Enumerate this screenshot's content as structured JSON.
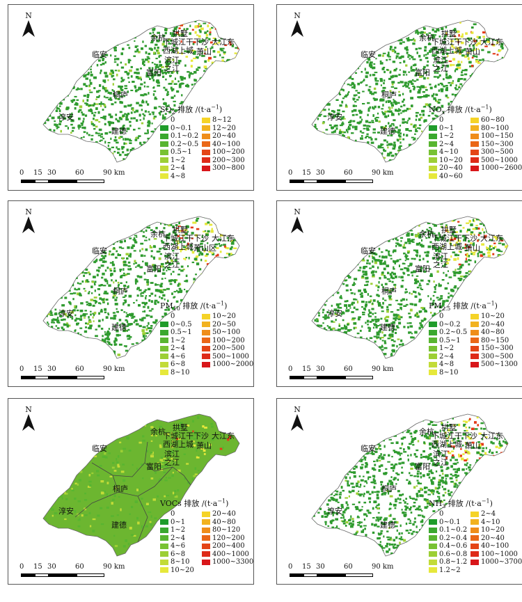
{
  "panels": [
    {
      "id": "so2",
      "title_main": "SO",
      "title_sub": "2",
      "title_rest": " 排放 /(t·a",
      "title_sup": "−1",
      "title_end": ")",
      "left": [
        {
          "label": "0",
          "color": ""
        },
        {
          "label": "0~0.1",
          "color": "#1f9c2a"
        },
        {
          "label": "0.1~0.2",
          "color": "#3aa82e"
        },
        {
          "label": "0.2~0.5",
          "color": "#58b530"
        },
        {
          "label": "0.5~1",
          "color": "#78c233"
        },
        {
          "label": "1~2",
          "color": "#9ccf35"
        },
        {
          "label": "2~4",
          "color": "#c2db38"
        },
        {
          "label": "4~8",
          "color": "#e6e83b"
        }
      ],
      "right": [
        {
          "label": "8~12",
          "color": "#f5d327"
        },
        {
          "label": "12~20",
          "color": "#f2b21f"
        },
        {
          "label": "20~40",
          "color": "#ef8d1a"
        },
        {
          "label": "40~100",
          "color": "#ea6717"
        },
        {
          "label": "100~200",
          "color": "#e44416"
        },
        {
          "label": "200~300",
          "color": "#de2a18"
        },
        {
          "label": "300~800",
          "color": "#d8161a"
        }
      ]
    },
    {
      "id": "nox",
      "title_main": "NO",
      "title_sub": "x",
      "title_rest": " 排放 /(t·a",
      "title_sup": "−1",
      "title_end": ")",
      "left": [
        {
          "label": "0",
          "color": ""
        },
        {
          "label": "0~1",
          "color": "#1f9c2a"
        },
        {
          "label": "1~2",
          "color": "#3aa82e"
        },
        {
          "label": "2~4",
          "color": "#58b530"
        },
        {
          "label": "4~10",
          "color": "#78c233"
        },
        {
          "label": "10~20",
          "color": "#9ccf35"
        },
        {
          "label": "20~40",
          "color": "#c2db38"
        },
        {
          "label": "40~60",
          "color": "#e6e83b"
        }
      ],
      "right": [
        {
          "label": "60~80",
          "color": "#f5d327"
        },
        {
          "label": "80~100",
          "color": "#f2b21f"
        },
        {
          "label": "100~150",
          "color": "#ef8d1a"
        },
        {
          "label": "150~300",
          "color": "#ea6717"
        },
        {
          "label": "300~500",
          "color": "#e44416"
        },
        {
          "label": "500~1000",
          "color": "#de2a18"
        },
        {
          "label": "1000~2600",
          "color": "#d8161a"
        }
      ]
    },
    {
      "id": "pm10",
      "title_main": "PM",
      "title_sub": "10",
      "title_rest": " 排放 /(t·a",
      "title_sup": "−1",
      "title_end": ")",
      "left": [
        {
          "label": "0",
          "color": ""
        },
        {
          "label": "0~0.5",
          "color": "#1f9c2a"
        },
        {
          "label": "0.5~1",
          "color": "#3aa82e"
        },
        {
          "label": "1~2",
          "color": "#58b530"
        },
        {
          "label": "2~4",
          "color": "#78c233"
        },
        {
          "label": "4~6",
          "color": "#9ccf35"
        },
        {
          "label": "6~8",
          "color": "#c2db38"
        },
        {
          "label": "8~10",
          "color": "#e6e83b"
        }
      ],
      "right": [
        {
          "label": "10~20",
          "color": "#f5d327"
        },
        {
          "label": "20~50",
          "color": "#f2b21f"
        },
        {
          "label": "50~100",
          "color": "#ef8d1a"
        },
        {
          "label": "100~200",
          "color": "#ea6717"
        },
        {
          "label": "200~500",
          "color": "#e44416"
        },
        {
          "label": "500~1000",
          "color": "#de2a18"
        },
        {
          "label": "1000~2000",
          "color": "#d8161a"
        }
      ]
    },
    {
      "id": "pm25",
      "title_main": "PM",
      "title_sub": "2.5",
      "title_rest": " 排放 /(t·a",
      "title_sup": "−1",
      "title_end": ")",
      "left": [
        {
          "label": "0",
          "color": ""
        },
        {
          "label": "0~0.2",
          "color": "#1f9c2a"
        },
        {
          "label": "0.2~0.5",
          "color": "#3aa82e"
        },
        {
          "label": "0.5~1",
          "color": "#58b530"
        },
        {
          "label": "1~2",
          "color": "#78c233"
        },
        {
          "label": "2~4",
          "color": "#9ccf35"
        },
        {
          "label": "4~8",
          "color": "#c2db38"
        },
        {
          "label": "8~10",
          "color": "#e6e83b"
        }
      ],
      "right": [
        {
          "label": "10~20",
          "color": "#f5d327"
        },
        {
          "label": "20~40",
          "color": "#f2b21f"
        },
        {
          "label": "40~80",
          "color": "#ef8d1a"
        },
        {
          "label": "80~150",
          "color": "#ea6717"
        },
        {
          "label": "150~300",
          "color": "#e44416"
        },
        {
          "label": "300~500",
          "color": "#de2a18"
        },
        {
          "label": "500~1300",
          "color": "#d8161a"
        }
      ]
    },
    {
      "id": "vocs",
      "title_main": "VOCs",
      "title_sub": "",
      "title_rest": " 排放 /(t·a",
      "title_sup": "−1",
      "title_end": ")",
      "left": [
        {
          "label": "0",
          "color": ""
        },
        {
          "label": "0~1",
          "color": "#1f9c2a"
        },
        {
          "label": "1~2",
          "color": "#3aa82e"
        },
        {
          "label": "2~4",
          "color": "#58b530"
        },
        {
          "label": "4~6",
          "color": "#78c233"
        },
        {
          "label": "6~8",
          "color": "#9ccf35"
        },
        {
          "label": "8~10",
          "color": "#c2db38"
        },
        {
          "label": "10~20",
          "color": "#e6e83b"
        }
      ],
      "right": [
        {
          "label": "20~40",
          "color": "#f5d327"
        },
        {
          "label": "40~80",
          "color": "#f2b21f"
        },
        {
          "label": "80~120",
          "color": "#ef8d1a"
        },
        {
          "label": "120~200",
          "color": "#ea6717"
        },
        {
          "label": "200~400",
          "color": "#e44416"
        },
        {
          "label": "400~1000",
          "color": "#de2a18"
        },
        {
          "label": "1000~3300",
          "color": "#d8161a"
        }
      ]
    },
    {
      "id": "nh3",
      "title_main": "NH",
      "title_sub": "3",
      "title_rest": " 排放 /(t·a",
      "title_sup": "−1",
      "title_end": ")",
      "left": [
        {
          "label": "0",
          "color": ""
        },
        {
          "label": "0~0.1",
          "color": "#1f9c2a"
        },
        {
          "label": "0.1~0.2",
          "color": "#3aa82e"
        },
        {
          "label": "0.2~0.4",
          "color": "#58b530"
        },
        {
          "label": "0.4~0.6",
          "color": "#78c233"
        },
        {
          "label": "0.6~0.8",
          "color": "#9ccf35"
        },
        {
          "label": "0.8~1.2",
          "color": "#c2db38"
        },
        {
          "label": "1.2~2",
          "color": "#e6e83b"
        }
      ],
      "right": [
        {
          "label": "2~4",
          "color": "#f5d327"
        },
        {
          "label": "4~10",
          "color": "#f2b21f"
        },
        {
          "label": "10~20",
          "color": "#ef8d1a"
        },
        {
          "label": "20~40",
          "color": "#ea6717"
        },
        {
          "label": "40~100",
          "color": "#e44416"
        },
        {
          "label": "100~1000",
          "color": "#de2a18"
        },
        {
          "label": "1000~3700",
          "color": "#d8161a"
        }
      ]
    }
  ],
  "north_label": "N",
  "scale_ticks": [
    "0",
    "15",
    "30",
    "60",
    "90 km"
  ],
  "districts": {
    "yuhang": "余杭",
    "gongshu": "拱墅",
    "xiacheng_jianggan_xiasha": "下城江干下沙",
    "dajiangdong": "大江东",
    "xihu_shangcheng": "西湖上城",
    "binjiang": "滨江",
    "zhijiang": "之江",
    "xiaoshan": "萧山",
    "xiaoshanqu": "萧山区",
    "lin_an": "临安",
    "fuyang": "富阳",
    "tonglu": "桐庐",
    "chun_an": "淳安",
    "jiande": "建德"
  },
  "colors": {
    "land_sparse": "#2f9b2f",
    "land_fill": "#6cb630",
    "hotspot": "#e33a18",
    "yellow": "#e6e83b"
  }
}
